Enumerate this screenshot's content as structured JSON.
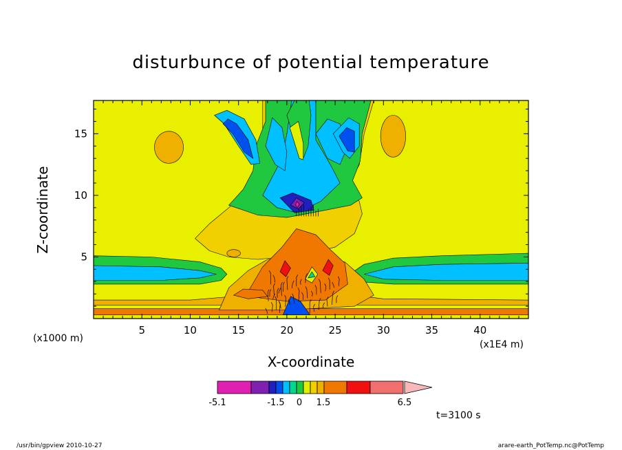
{
  "chart_data": {
    "type": "heatmap",
    "subtype": "filled-contour",
    "title": "disturbunce of potential temperature",
    "xlabel": "X-coordinate",
    "ylabel": "Z-coordinate",
    "x_unit": "(x1E4 m)",
    "y_unit": "(x1000 m)",
    "xlim": [
      0,
      45
    ],
    "ylim": [
      0,
      17.7
    ],
    "xticks": [
      "5",
      "10",
      "15",
      "20",
      "25",
      "30",
      "35",
      "40"
    ],
    "yticks": [
      "5",
      "10",
      "15"
    ],
    "timestamp": "t=3100 s",
    "colorbar": {
      "tick_labels": [
        "-5.1",
        "-1.5",
        "0",
        "1.5",
        "6.5"
      ],
      "colors": [
        "#e020b0",
        "#8020b0",
        "#2020c0",
        "#0050f0",
        "#00c0ff",
        "#00d890",
        "#20c840",
        "#e0f000",
        "#f0d000",
        "#f0b000",
        "#f07800",
        "#f01010",
        "#f07070",
        "#f8b8b8"
      ]
    },
    "background_color": "#e8f000"
  },
  "footer": {
    "left": "/usr/bin/gpview   2010-10-27",
    "right": "arare-earth_PotTemp.nc@PotTemp"
  }
}
